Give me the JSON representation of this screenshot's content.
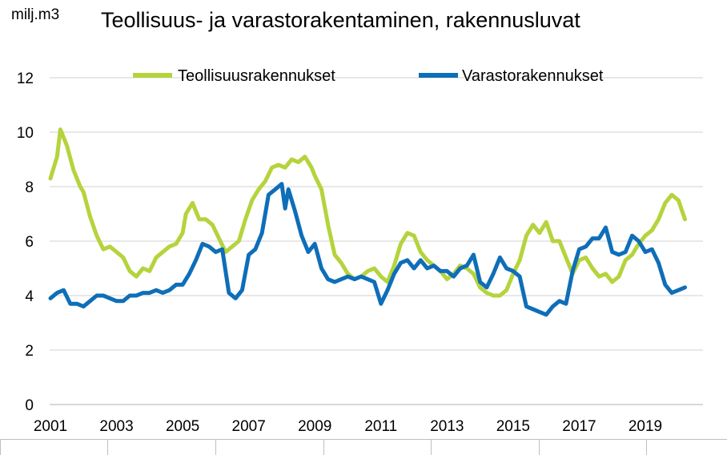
{
  "chart_data": {
    "type": "line",
    "title": "Teollisuus- ja varastorakentaminen, rakennusluvat",
    "ylabel": "milj.m3",
    "xlabel": "",
    "ylim": [
      0,
      12
    ],
    "yticks": [
      0,
      2,
      4,
      6,
      8,
      10,
      12
    ],
    "xlim": [
      2001,
      2020.5
    ],
    "xticks": [
      "2001",
      "2003",
      "2005",
      "2007",
      "2009",
      "2011",
      "2013",
      "2015",
      "2017",
      "2019"
    ],
    "grid": true,
    "legend_position": "top",
    "series": [
      {
        "name": "Teollisuusrakennukset",
        "color": "#b5d33d",
        "x": [
          2001.0,
          2001.1,
          2001.2,
          2001.3,
          2001.4,
          2001.5,
          2001.7,
          2001.9,
          2002.0,
          2002.2,
          2002.4,
          2002.6,
          2002.8,
          2003.0,
          2003.2,
          2003.4,
          2003.6,
          2003.8,
          2004.0,
          2004.2,
          2004.4,
          2004.6,
          2004.8,
          2005.0,
          2005.1,
          2005.3,
          2005.5,
          2005.7,
          2005.9,
          2006.1,
          2006.3,
          2006.5,
          2006.7,
          2006.9,
          2007.1,
          2007.3,
          2007.5,
          2007.7,
          2007.9,
          2008.1,
          2008.3,
          2008.5,
          2008.7,
          2008.9,
          2009.0,
          2009.2,
          2009.4,
          2009.6,
          2009.8,
          2010.0,
          2010.2,
          2010.4,
          2010.6,
          2010.8,
          2011.0,
          2011.2,
          2011.4,
          2011.6,
          2011.8,
          2012.0,
          2012.2,
          2012.4,
          2012.6,
          2012.8,
          2013.0,
          2013.2,
          2013.4,
          2013.6,
          2013.8,
          2014.0,
          2014.2,
          2014.4,
          2014.6,
          2014.8,
          2015.0,
          2015.2,
          2015.4,
          2015.6,
          2015.8,
          2016.0,
          2016.2,
          2016.4,
          2016.6,
          2016.8,
          2017.0,
          2017.2,
          2017.4,
          2017.6,
          2017.8,
          2018.0,
          2018.2,
          2018.4,
          2018.6,
          2018.8,
          2019.0,
          2019.2,
          2019.4,
          2019.6,
          2019.8,
          2020.0,
          2020.2
        ],
        "values": [
          8.3,
          8.7,
          9.1,
          10.1,
          9.8,
          9.5,
          8.6,
          8.0,
          7.8,
          6.9,
          6.2,
          5.7,
          5.8,
          5.6,
          5.4,
          4.9,
          4.7,
          5.0,
          4.9,
          5.4,
          5.6,
          5.8,
          5.9,
          6.3,
          7.0,
          7.4,
          6.8,
          6.8,
          6.6,
          6.1,
          5.6,
          5.8,
          6.0,
          6.8,
          7.5,
          7.9,
          8.2,
          8.7,
          8.8,
          8.7,
          9.0,
          8.9,
          9.1,
          8.7,
          8.4,
          7.9,
          6.6,
          5.5,
          5.2,
          4.8,
          4.6,
          4.7,
          4.9,
          5.0,
          4.7,
          4.5,
          5.1,
          5.9,
          6.3,
          6.2,
          5.6,
          5.3,
          5.1,
          4.9,
          4.6,
          4.8,
          5.1,
          5.0,
          4.8,
          4.3,
          4.1,
          4.0,
          4.0,
          4.2,
          4.8,
          5.3,
          6.2,
          6.6,
          6.3,
          6.7,
          6.0,
          6.0,
          5.4,
          4.8,
          5.3,
          5.4,
          5.0,
          4.7,
          4.8,
          4.5,
          4.7,
          5.3,
          5.5,
          5.9,
          6.2,
          6.4,
          6.8,
          7.4,
          7.7,
          7.5,
          6.8
        ]
      },
      {
        "name": "Varastorakennukset",
        "color": "#0e6eb8",
        "x": [
          2001.0,
          2001.2,
          2001.4,
          2001.6,
          2001.8,
          2002.0,
          2002.2,
          2002.4,
          2002.6,
          2002.8,
          2003.0,
          2003.2,
          2003.4,
          2003.6,
          2003.8,
          2004.0,
          2004.2,
          2004.4,
          2004.6,
          2004.8,
          2005.0,
          2005.2,
          2005.4,
          2005.6,
          2005.8,
          2006.0,
          2006.2,
          2006.4,
          2006.6,
          2006.8,
          2007.0,
          2007.2,
          2007.4,
          2007.6,
          2007.8,
          2008.0,
          2008.1,
          2008.2,
          2008.4,
          2008.6,
          2008.8,
          2009.0,
          2009.2,
          2009.4,
          2009.6,
          2009.8,
          2010.0,
          2010.2,
          2010.4,
          2010.6,
          2010.8,
          2011.0,
          2011.2,
          2011.4,
          2011.6,
          2011.8,
          2012.0,
          2012.2,
          2012.4,
          2012.6,
          2012.8,
          2013.0,
          2013.2,
          2013.4,
          2013.6,
          2013.8,
          2014.0,
          2014.2,
          2014.4,
          2014.6,
          2014.8,
          2015.0,
          2015.2,
          2015.4,
          2015.6,
          2015.8,
          2016.0,
          2016.2,
          2016.4,
          2016.6,
          2016.8,
          2017.0,
          2017.2,
          2017.4,
          2017.6,
          2017.8,
          2018.0,
          2018.2,
          2018.4,
          2018.6,
          2018.8,
          2019.0,
          2019.2,
          2019.4,
          2019.6,
          2019.8,
          2020.0,
          2020.2
        ],
        "values": [
          3.9,
          4.1,
          4.2,
          3.7,
          3.7,
          3.6,
          3.8,
          4.0,
          4.0,
          3.9,
          3.8,
          3.8,
          4.0,
          4.0,
          4.1,
          4.1,
          4.2,
          4.1,
          4.2,
          4.4,
          4.4,
          4.8,
          5.3,
          5.9,
          5.8,
          5.6,
          5.7,
          4.1,
          3.9,
          4.2,
          5.5,
          5.7,
          6.3,
          7.7,
          7.9,
          8.1,
          7.2,
          7.9,
          7.1,
          6.2,
          5.6,
          5.9,
          5.0,
          4.6,
          4.5,
          4.6,
          4.7,
          4.6,
          4.7,
          4.6,
          4.5,
          3.7,
          4.2,
          4.8,
          5.2,
          5.3,
          5.0,
          5.3,
          5.0,
          5.1,
          4.9,
          4.9,
          4.7,
          5.0,
          5.1,
          5.5,
          4.5,
          4.3,
          4.8,
          5.4,
          5.0,
          4.9,
          4.7,
          3.6,
          3.5,
          3.4,
          3.3,
          3.6,
          3.8,
          3.7,
          4.9,
          5.7,
          5.8,
          6.1,
          6.1,
          6.5,
          5.6,
          5.5,
          5.6,
          6.2,
          6.0,
          5.6,
          5.7,
          5.2,
          4.4,
          4.1,
          4.2,
          4.3
        ]
      }
    ]
  }
}
